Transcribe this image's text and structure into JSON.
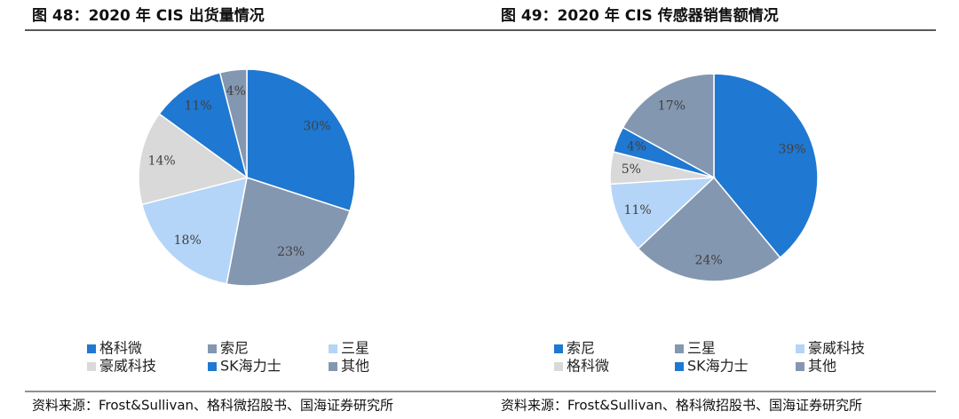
{
  "chart_data": [
    {
      "type": "pie",
      "title": "图 48：2020 年 CIS 出货量情况",
      "categories": [
        "格科微",
        "索尼",
        "三星",
        "豪威科技",
        "SK海力士",
        "其他"
      ],
      "values": [
        30,
        23,
        18,
        14,
        11,
        4
      ],
      "value_labels": [
        "30%",
        "23%",
        "18%",
        "14%",
        "11%",
        "4%"
      ],
      "colors": [
        "#1f78d1",
        "#8497b0",
        "#b4d5f7",
        "#d9d9d9",
        "#1f78d1",
        "#8497b0"
      ],
      "source": "资料来源：Frost&Sullivan、格科微招股书、国海证券研究所"
    },
    {
      "type": "pie",
      "title": "图 49：2020 年 CIS 传感器销售额情况",
      "categories": [
        "索尼",
        "三星",
        "豪威科技",
        "格科微",
        "SK海力士",
        "其他"
      ],
      "values": [
        39,
        24,
        11,
        5,
        4,
        17
      ],
      "value_labels": [
        "39%",
        "24%",
        "11%",
        "5%",
        "4%",
        "17%"
      ],
      "colors": [
        "#1f78d1",
        "#8497b0",
        "#b4d5f7",
        "#d9d9d9",
        "#1f78d1",
        "#8497b0"
      ],
      "source": "资料来源：Frost&Sullivan、格科微招股书、国海证券研究所"
    }
  ]
}
